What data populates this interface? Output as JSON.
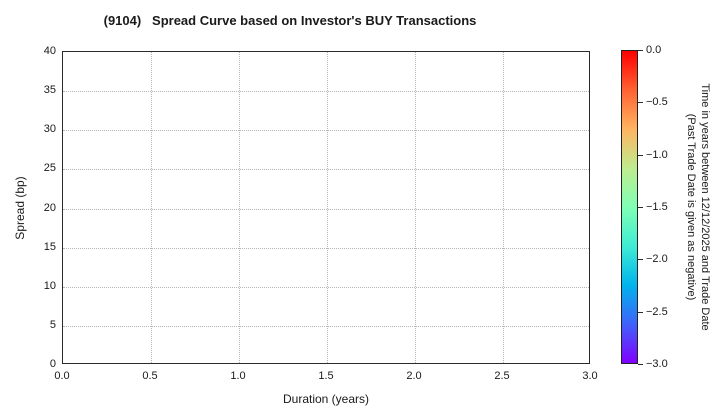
{
  "figure": {
    "title": "(9104)   Spread Curve based on Investor's BUY Transactions"
  },
  "axes": {
    "xlabel": "Duration (years)",
    "ylabel": "Spread (bp)",
    "xticks": [
      "0.0",
      "0.5",
      "1.0",
      "1.5",
      "2.0",
      "2.5",
      "3.0"
    ],
    "yticks": [
      "0",
      "5",
      "10",
      "15",
      "20",
      "25",
      "30",
      "35",
      "40"
    ]
  },
  "colorbar": {
    "ticks": [
      "0.0",
      "−0.5",
      "−1.0",
      "−1.5",
      "−2.0",
      "−2.5",
      "−3.0"
    ],
    "label_line1": "Time in years between 12/12/2025 and Trade Date",
    "label_line2": "(Past Trade Date is given as negative)",
    "gradient": [
      "#ff0000",
      "#ff6232",
      "#ffb461",
      "#bfec8e",
      "#80ffb4",
      "#40ecd4",
      "#00b4ec",
      "#4062fa",
      "#8000ff"
    ]
  },
  "chart_data": {
    "type": "scatter",
    "title": "(9104)   Spread Curve based on Investor's BUY Transactions",
    "xlabel": "Duration (years)",
    "ylabel": "Spread (bp)",
    "xlim": [
      0.0,
      3.0
    ],
    "ylim": [
      0,
      40
    ],
    "grid": true,
    "grid_style": "dotted",
    "series": [],
    "colorbar": {
      "label": "Time in years between 12/12/2025 and Trade Date (Past Trade Date is given as negative)",
      "range_top": 0.0,
      "range_bottom": -3.0,
      "ticks": [
        0.0,
        -0.5,
        -1.0,
        -1.5,
        -2.0,
        -2.5,
        -3.0
      ],
      "colormap": "rainbow (red at 0.0 to violet at -3.0)"
    }
  }
}
